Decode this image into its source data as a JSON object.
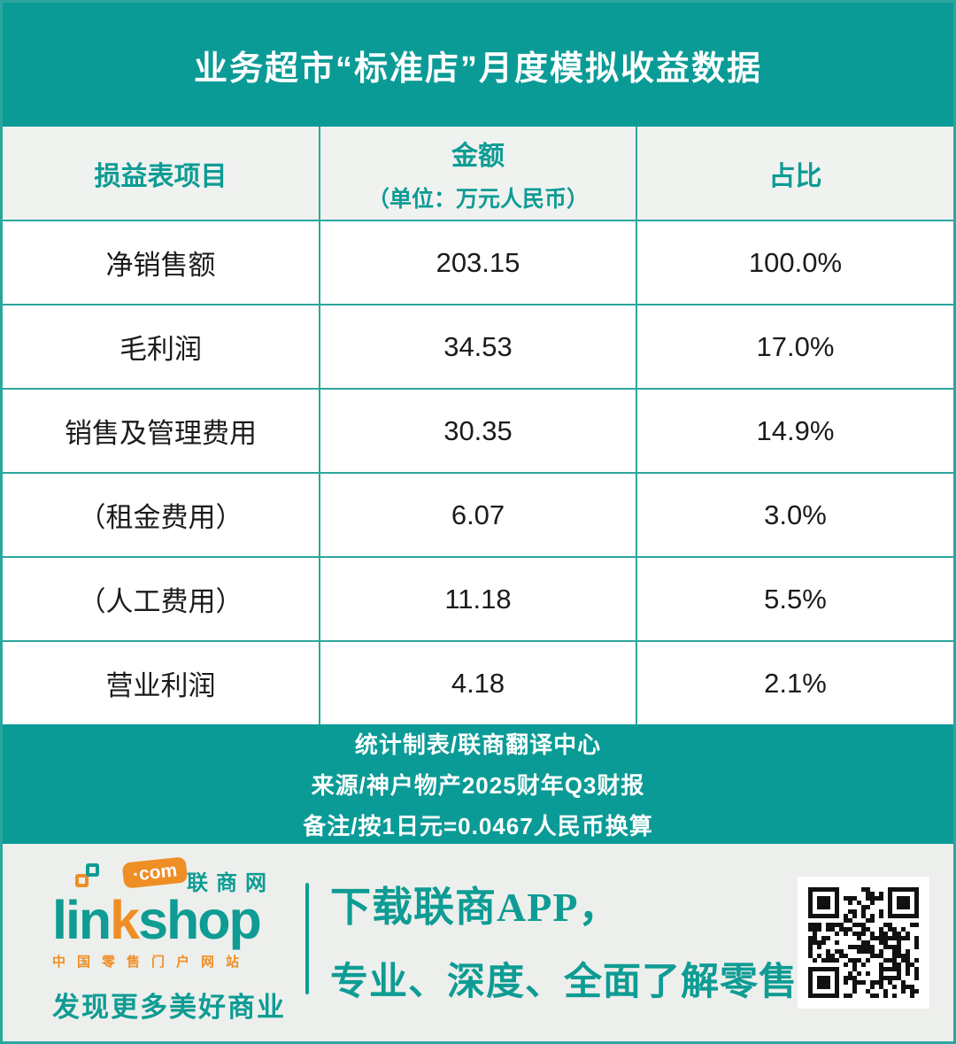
{
  "title": "业务超市“标准店”月度模拟收益数据",
  "colors": {
    "teal": "#0b9b96",
    "teal_text": "#0e9c94",
    "orange": "#ef8e25",
    "header_cell_bg": "#f0f2f0",
    "bottom_bg": "#edefec"
  },
  "table": {
    "headers": {
      "item": "损益表项目",
      "amount": "金额",
      "amount_unit": "（单位：万元人民币）",
      "share": "占比"
    },
    "rows": [
      {
        "item": "净销售额",
        "amount": "203.15",
        "share": "100.0%"
      },
      {
        "item": "毛利润",
        "amount": "34.53",
        "share": "17.0%"
      },
      {
        "item": "销售及管理费用",
        "amount": "30.35",
        "share": "14.9%"
      },
      {
        "item": "（租金费用）",
        "amount": "6.07",
        "share": "3.0%"
      },
      {
        "item": "（人工费用）",
        "amount": "11.18",
        "share": "5.5%"
      },
      {
        "item": "营业利润",
        "amount": "4.18",
        "share": "2.1%"
      }
    ]
  },
  "source_notes": {
    "line1": "统计制表/联商翻译中心",
    "line2": "来源/神户物产2025财年Q3财报",
    "line3": "备注/按1日元=0.0467人民币换算"
  },
  "footer": {
    "logo_part1": "lin",
    "logo_part2": "k",
    "logo_part3": "shop",
    "logo_com_badge": "·com",
    "logo_cn": "联商网",
    "logo_tagline": "中国零售门户网站",
    "logo_slogan": "发现更多美好商业",
    "promo_line1": "下载联商APP，",
    "promo_line2": "专业、深度、全面了解零售"
  }
}
